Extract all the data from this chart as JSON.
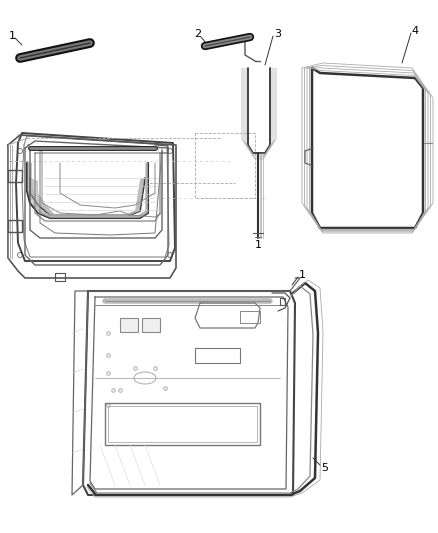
{
  "bg_color": "#ffffff",
  "line_color": "#555555",
  "dark_line": "#111111",
  "label_color": "#000000",
  "figsize": [
    4.38,
    5.33
  ],
  "dpi": 100
}
